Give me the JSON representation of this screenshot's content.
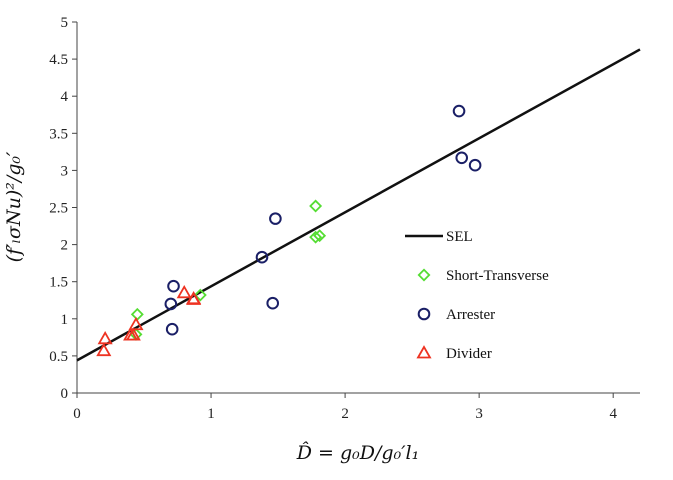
{
  "chart_data": {
    "type": "scatter",
    "xlabel": "D̂ = g₀D/g₀′l₁",
    "ylabel": "(f′ₗσNu)²/g₀′",
    "xlim": [
      0,
      4.2
    ],
    "ylim": [
      0,
      5
    ],
    "x_ticks": [
      "0",
      "1",
      "2",
      "3",
      "4"
    ],
    "y_ticks": [
      "0",
      "0.5",
      "1",
      "1.5",
      "2",
      "2.5",
      "3",
      "3.5",
      "4",
      "4.5",
      "5"
    ],
    "grid": false,
    "legend_position": "right",
    "series": [
      {
        "name": "SEL",
        "kind": "line",
        "color": "#111111",
        "points": [
          [
            0,
            0.44
          ],
          [
            4.2,
            4.63
          ]
        ]
      },
      {
        "name": "Short-Transverse",
        "kind": "diamond",
        "color": "#55dd33",
        "points": [
          [
            0.45,
            1.06
          ],
          [
            0.44,
            0.79
          ],
          [
            0.92,
            1.32
          ],
          [
            1.78,
            2.52
          ],
          [
            1.78,
            2.1
          ],
          [
            1.81,
            2.12
          ]
        ]
      },
      {
        "name": "Arrester",
        "kind": "circle",
        "color": "#1a1f66",
        "points": [
          [
            0.72,
            1.44
          ],
          [
            0.7,
            1.2
          ],
          [
            0.71,
            0.86
          ],
          [
            1.38,
            1.83
          ],
          [
            1.48,
            2.35
          ],
          [
            1.46,
            1.21
          ],
          [
            2.85,
            3.8
          ],
          [
            2.87,
            3.17
          ],
          [
            2.97,
            3.07
          ]
        ]
      },
      {
        "name": "Divider",
        "kind": "triangle",
        "color": "#ee3322",
        "points": [
          [
            0.21,
            0.73
          ],
          [
            0.2,
            0.57
          ],
          [
            0.42,
            0.78
          ],
          [
            0.4,
            0.78
          ],
          [
            0.44,
            0.92
          ],
          [
            0.8,
            1.35
          ],
          [
            0.87,
            1.27
          ],
          [
            0.87,
            1.26
          ]
        ]
      }
    ]
  }
}
